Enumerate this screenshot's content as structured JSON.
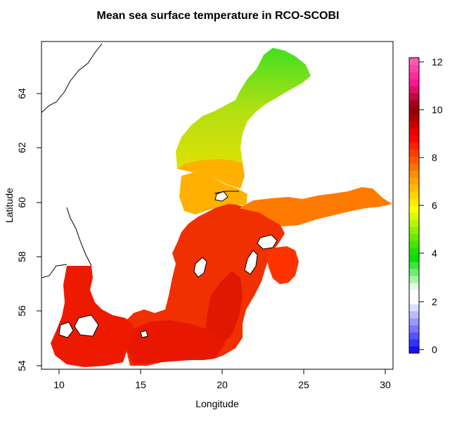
{
  "title": "Mean sea surface temperature in RCO-SCOBI",
  "x_axis": {
    "label": "Longitude",
    "ticks": [
      "10",
      "15",
      "20",
      "25",
      "30"
    ]
  },
  "y_axis": {
    "label": "Latitude",
    "ticks": [
      "54",
      "56",
      "58",
      "60",
      "62",
      "64"
    ]
  },
  "colorbar": {
    "ticks": [
      "0",
      "2",
      "4",
      "6",
      "8",
      "10",
      "12"
    ],
    "range": [
      0,
      12.3
    ],
    "colors": {
      "blue": "#0000ff",
      "white": "#ffffff",
      "green": "#00dd00",
      "yellow": "#ffff00",
      "orange": "#ff8c00",
      "red": "#ff0000",
      "darkred": "#8b0000",
      "magenta": "#ff1493",
      "pink": "#ff69b4"
    }
  },
  "regions": {
    "bothnian_bay": "#40e020",
    "bothnian_sea_north": "#b4e010",
    "bothnian_sea_south": "#f0e000",
    "aland_sea": "#ffb000",
    "gulf_of_finland": "#ff7a00",
    "gulf_of_riga": "#ff3300",
    "baltic_proper": "#f03000",
    "gotland_deep": "#e01800",
    "southern_baltic": "#e81800",
    "kattegat": "#ee1a00"
  },
  "lakes": {
    "vanern": "#ffffff",
    "vattern": "#ffffff"
  }
}
